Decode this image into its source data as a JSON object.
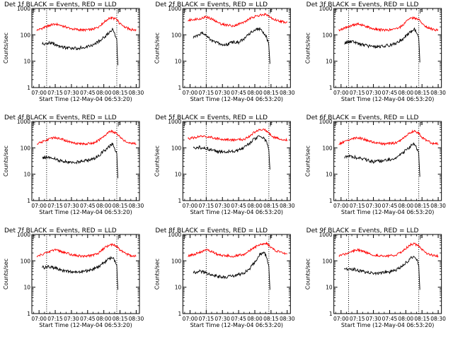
{
  "chart_data": [
    {
      "type": "line",
      "title": "Det 1f BLACK = Events, RED = LLD",
      "xlabel": "Start Time (12-May-04 06:53:20)",
      "ylabel": "Counts/sec",
      "marker": "F",
      "vlines": [
        "07:07",
        "08:12"
      ],
      "ylim": [
        1,
        1000
      ],
      "yscale": "log",
      "xticks": [
        "07:00",
        "07:15",
        "07:30",
        "07:45",
        "08:00",
        "08:15",
        "08:30"
      ],
      "yticks": [
        "1",
        "10",
        "100",
        "1000"
      ],
      "series": [
        {
          "color": "#ff0000",
          "x": [
            "06:58",
            "07:05",
            "07:10",
            "07:15",
            "07:20",
            "07:30",
            "07:40",
            "07:50",
            "07:55",
            "08:00",
            "08:05",
            "08:08",
            "08:12",
            "08:15",
            "08:20",
            "08:25",
            "08:30"
          ],
          "values": [
            150,
            190,
            230,
            260,
            230,
            170,
            150,
            160,
            200,
            300,
            430,
            440,
            380,
            260,
            190,
            160,
            150
          ]
        },
        {
          "color": "#000000",
          "x": [
            "07:03",
            "07:08",
            "07:12",
            "07:15",
            "07:20",
            "07:25",
            "07:30",
            "07:35",
            "07:40",
            "07:45",
            "07:50",
            "07:55",
            "08:00",
            "08:05",
            "08:08",
            "08:10",
            "08:12",
            "08:13"
          ],
          "values": [
            45,
            50,
            48,
            42,
            35,
            32,
            30,
            31,
            33,
            36,
            40,
            55,
            80,
            120,
            160,
            110,
            70,
            7
          ]
        }
      ]
    },
    {
      "type": "line",
      "title": "Det 2f BLACK = Events, RED = LLD",
      "xlabel": "Start Time (12-May-04 06:53:20)",
      "ylabel": "Counts/sec",
      "marker": "F",
      "vlines": [
        "07:15",
        "08:13"
      ],
      "ylim": [
        1,
        1000
      ],
      "yscale": "log",
      "xticks": [
        "07:00",
        "07:15",
        "07:30",
        "07:45",
        "08:00",
        "08:15",
        "08:30"
      ],
      "yticks": [
        "1",
        "10",
        "100",
        "1000"
      ],
      "series": [
        {
          "color": "#ff0000",
          "x": [
            "06:58",
            "07:05",
            "07:10",
            "07:15",
            "07:20",
            "07:25",
            "07:30",
            "07:40",
            "07:50",
            "07:55",
            "08:00",
            "08:05",
            "08:10",
            "08:13",
            "08:18",
            "08:25",
            "08:30"
          ],
          "values": [
            350,
            400,
            420,
            480,
            400,
            300,
            250,
            220,
            300,
            400,
            500,
            550,
            600,
            500,
            380,
            320,
            300
          ]
        },
        {
          "color": "#000000",
          "x": [
            "07:03",
            "07:08",
            "07:12",
            "07:15",
            "07:20",
            "07:25",
            "07:30",
            "07:35",
            "07:40",
            "07:45",
            "07:50",
            "07:55",
            "08:00",
            "08:05",
            "08:08",
            "08:11",
            "08:13",
            "08:14"
          ],
          "values": [
            80,
            100,
            120,
            90,
            60,
            50,
            40,
            45,
            55,
            50,
            70,
            110,
            150,
            170,
            120,
            80,
            40,
            8
          ]
        }
      ]
    },
    {
      "type": "line",
      "title": "Det 3f BLACK = Events, RED = LLD",
      "xlabel": "Start Time (12-May-04 06:53:20)",
      "ylabel": "Counts/sec",
      "marker": "F",
      "vlines": [
        "07:07",
        "08:12"
      ],
      "ylim": [
        1,
        1000
      ],
      "yscale": "log",
      "xticks": [
        "07:00",
        "07:15",
        "07:30",
        "07:45",
        "08:00",
        "08:15",
        "08:30"
      ],
      "yticks": [
        "1",
        "10",
        "100",
        "1000"
      ],
      "series": [
        {
          "color": "#ff0000",
          "x": [
            "06:58",
            "07:05",
            "07:10",
            "07:15",
            "07:20",
            "07:30",
            "07:40",
            "07:50",
            "07:55",
            "08:00",
            "08:05",
            "08:08",
            "08:12",
            "08:15",
            "08:20",
            "08:25",
            "08:30"
          ],
          "values": [
            150,
            190,
            230,
            260,
            230,
            170,
            150,
            160,
            200,
            300,
            430,
            440,
            380,
            260,
            190,
            160,
            150
          ]
        },
        {
          "color": "#000000",
          "x": [
            "07:03",
            "07:08",
            "07:12",
            "07:15",
            "07:20",
            "07:25",
            "07:30",
            "07:35",
            "07:40",
            "07:45",
            "07:50",
            "07:55",
            "08:00",
            "08:05",
            "08:08",
            "08:10",
            "08:12",
            "08:13"
          ],
          "values": [
            50,
            55,
            52,
            48,
            42,
            38,
            35,
            36,
            38,
            40,
            45,
            60,
            90,
            140,
            170,
            120,
            80,
            9
          ]
        }
      ]
    },
    {
      "type": "line",
      "title": "Det 4f BLACK = Events, RED = LLD",
      "xlabel": "Start Time (12-May-04 06:53:20)",
      "ylabel": "Counts/sec",
      "marker": "F",
      "vlines": [
        "07:07",
        "08:12"
      ],
      "ylim": [
        1,
        1000
      ],
      "yscale": "log",
      "xticks": [
        "07:00",
        "07:15",
        "07:30",
        "07:45",
        "08:00",
        "08:15",
        "08:30"
      ],
      "yticks": [
        "1",
        "10",
        "100",
        "1000"
      ],
      "series": [
        {
          "color": "#ff0000",
          "x": [
            "06:58",
            "07:05",
            "07:10",
            "07:15",
            "07:20",
            "07:30",
            "07:40",
            "07:50",
            "07:55",
            "08:00",
            "08:05",
            "08:08",
            "08:12",
            "08:15",
            "08:20",
            "08:25",
            "08:30"
          ],
          "values": [
            140,
            180,
            220,
            250,
            220,
            160,
            140,
            150,
            190,
            280,
            400,
            420,
            360,
            250,
            180,
            150,
            140
          ]
        },
        {
          "color": "#000000",
          "x": [
            "07:03",
            "07:08",
            "07:12",
            "07:15",
            "07:20",
            "07:25",
            "07:30",
            "07:35",
            "07:40",
            "07:45",
            "07:50",
            "07:55",
            "08:00",
            "08:05",
            "08:08",
            "08:10",
            "08:12",
            "08:13"
          ],
          "values": [
            40,
            45,
            42,
            38,
            32,
            30,
            28,
            29,
            31,
            34,
            38,
            50,
            75,
            110,
            150,
            100,
            65,
            7
          ]
        }
      ]
    },
    {
      "type": "line",
      "title": "Det 5f BLACK = Events, RED = LLD",
      "xlabel": "Start Time (12-May-04 06:53:20)",
      "ylabel": "Counts/sec",
      "marker": "F",
      "vlines": [
        "07:15",
        "08:13"
      ],
      "ylim": [
        1,
        1000
      ],
      "yscale": "log",
      "xticks": [
        "07:00",
        "07:15",
        "07:30",
        "07:45",
        "08:00",
        "08:15",
        "08:30"
      ],
      "yticks": [
        "1",
        "10",
        "100",
        "1000"
      ],
      "series": [
        {
          "color": "#ff0000",
          "x": [
            "06:58",
            "07:05",
            "07:10",
            "07:15",
            "07:20",
            "07:30",
            "07:40",
            "07:50",
            "07:55",
            "08:00",
            "08:05",
            "08:10",
            "08:13",
            "08:18",
            "08:25",
            "08:30"
          ],
          "values": [
            220,
            250,
            270,
            270,
            250,
            210,
            200,
            210,
            280,
            400,
            520,
            480,
            360,
            250,
            210,
            200
          ]
        },
        {
          "color": "#000000",
          "x": [
            "07:03",
            "07:08",
            "07:12",
            "07:15",
            "07:20",
            "07:25",
            "07:30",
            "07:35",
            "07:40",
            "07:45",
            "07:50",
            "07:55",
            "08:00",
            "08:05",
            "08:08",
            "08:11",
            "08:13",
            "08:14"
          ],
          "values": [
            100,
            105,
            100,
            95,
            85,
            75,
            70,
            72,
            75,
            80,
            100,
            150,
            220,
            280,
            250,
            170,
            80,
            15
          ]
        }
      ]
    },
    {
      "type": "line",
      "title": "Det 6f BLACK = Events, RED = LLD",
      "xlabel": "Start Time (12-May-04 06:53:20)",
      "ylabel": "Counts/sec",
      "marker": "F",
      "vlines": [
        "07:07",
        "08:12"
      ],
      "ylim": [
        1,
        1000
      ],
      "yscale": "log",
      "xticks": [
        "07:00",
        "07:15",
        "07:30",
        "07:45",
        "08:00",
        "08:15",
        "08:30"
      ],
      "yticks": [
        "1",
        "10",
        "100",
        "1000"
      ],
      "series": [
        {
          "color": "#ff0000",
          "x": [
            "06:58",
            "07:05",
            "07:10",
            "07:15",
            "07:20",
            "07:30",
            "07:40",
            "07:50",
            "07:55",
            "08:00",
            "08:05",
            "08:08",
            "08:12",
            "08:15",
            "08:20",
            "08:25",
            "08:30"
          ],
          "values": [
            140,
            180,
            220,
            250,
            220,
            160,
            140,
            150,
            190,
            280,
            400,
            420,
            360,
            250,
            180,
            150,
            140
          ]
        },
        {
          "color": "#000000",
          "x": [
            "07:03",
            "07:08",
            "07:12",
            "07:15",
            "07:20",
            "07:25",
            "07:30",
            "07:35",
            "07:40",
            "07:45",
            "07:50",
            "07:55",
            "08:00",
            "08:05",
            "08:08",
            "08:10",
            "08:12",
            "08:13"
          ],
          "values": [
            45,
            48,
            45,
            42,
            38,
            34,
            30,
            31,
            33,
            36,
            40,
            55,
            80,
            120,
            140,
            100,
            60,
            8
          ]
        }
      ]
    },
    {
      "type": "line",
      "title": "Det 7f BLACK = Events, RED = LLD",
      "xlabel": "Start Time (12-May-04 06:53:20)",
      "ylabel": "Counts/sec",
      "marker": "F",
      "vlines": [
        "07:07",
        "08:12"
      ],
      "ylim": [
        1,
        1000
      ],
      "yscale": "log",
      "xticks": [
        "07:00",
        "07:15",
        "07:30",
        "07:45",
        "08:00",
        "08:15",
        "08:30"
      ],
      "yticks": [
        "1",
        "10",
        "100",
        "1000"
      ],
      "series": [
        {
          "color": "#ff0000",
          "x": [
            "06:58",
            "07:05",
            "07:10",
            "07:15",
            "07:20",
            "07:30",
            "07:40",
            "07:50",
            "07:55",
            "08:00",
            "08:05",
            "08:08",
            "08:12",
            "08:15",
            "08:20",
            "08:25",
            "08:30"
          ],
          "values": [
            150,
            190,
            230,
            260,
            230,
            170,
            150,
            160,
            200,
            300,
            400,
            420,
            360,
            260,
            190,
            160,
            150
          ]
        },
        {
          "color": "#000000",
          "x": [
            "07:03",
            "07:08",
            "07:12",
            "07:15",
            "07:20",
            "07:25",
            "07:30",
            "07:35",
            "07:40",
            "07:45",
            "07:50",
            "07:55",
            "08:00",
            "08:05",
            "08:08",
            "08:10",
            "08:12",
            "08:13"
          ],
          "values": [
            55,
            60,
            58,
            52,
            45,
            40,
            38,
            38,
            40,
            42,
            48,
            60,
            85,
            120,
            140,
            100,
            65,
            8
          ]
        }
      ]
    },
    {
      "type": "line",
      "title": "Det 8f BLACK = Events, RED = LLD",
      "xlabel": "Start Time (12-May-04 06:53:20)",
      "ylabel": "Counts/sec",
      "marker": "F",
      "vlines": [
        "07:15",
        "08:13"
      ],
      "ylim": [
        1,
        1000
      ],
      "yscale": "log",
      "xticks": [
        "07:00",
        "07:15",
        "07:30",
        "07:45",
        "08:00",
        "08:15",
        "08:30"
      ],
      "yticks": [
        "1",
        "10",
        "100",
        "1000"
      ],
      "series": [
        {
          "color": "#ff0000",
          "x": [
            "06:58",
            "07:05",
            "07:10",
            "07:15",
            "07:20",
            "07:25",
            "07:30",
            "07:40",
            "07:50",
            "07:55",
            "08:00",
            "08:05",
            "08:10",
            "08:13",
            "08:18",
            "08:25",
            "08:30"
          ],
          "values": [
            150,
            180,
            220,
            260,
            230,
            180,
            160,
            150,
            180,
            240,
            330,
            420,
            480,
            380,
            260,
            200,
            180
          ]
        },
        {
          "color": "#000000",
          "x": [
            "07:03",
            "07:08",
            "07:12",
            "07:15",
            "07:20",
            "07:25",
            "07:30",
            "07:35",
            "07:40",
            "07:45",
            "07:50",
            "07:55",
            "08:00",
            "08:05",
            "08:08",
            "08:11",
            "08:13",
            "08:14"
          ],
          "values": [
            35,
            40,
            38,
            35,
            30,
            26,
            24,
            25,
            27,
            30,
            35,
            50,
            90,
            180,
            220,
            140,
            60,
            8
          ]
        }
      ]
    },
    {
      "type": "line",
      "title": "Det 9f BLACK = Events, RED = LLD",
      "xlabel": "Start Time (12-May-04 06:53:20)",
      "ylabel": "Counts/sec",
      "marker": "F",
      "vlines": [
        "07:07",
        "08:12"
      ],
      "ylim": [
        1,
        1000
      ],
      "yscale": "log",
      "xticks": [
        "07:00",
        "07:15",
        "07:30",
        "07:45",
        "08:00",
        "08:15",
        "08:30"
      ],
      "yticks": [
        "1",
        "10",
        "100",
        "1000"
      ],
      "series": [
        {
          "color": "#ff0000",
          "x": [
            "06:58",
            "07:05",
            "07:10",
            "07:15",
            "07:20",
            "07:30",
            "07:40",
            "07:50",
            "07:55",
            "08:00",
            "08:05",
            "08:08",
            "08:12",
            "08:15",
            "08:20",
            "08:25",
            "08:30"
          ],
          "values": [
            150,
            190,
            230,
            260,
            230,
            170,
            150,
            160,
            200,
            300,
            430,
            440,
            380,
            260,
            190,
            160,
            150
          ]
        },
        {
          "color": "#000000",
          "x": [
            "07:03",
            "07:08",
            "07:12",
            "07:15",
            "07:20",
            "07:25",
            "07:30",
            "07:35",
            "07:40",
            "07:45",
            "07:50",
            "07:55",
            "08:00",
            "08:05",
            "08:08",
            "08:10",
            "08:12",
            "08:13"
          ],
          "values": [
            45,
            50,
            48,
            44,
            40,
            36,
            33,
            34,
            36,
            38,
            42,
            55,
            85,
            130,
            160,
            110,
            70,
            8
          ]
        }
      ]
    }
  ]
}
